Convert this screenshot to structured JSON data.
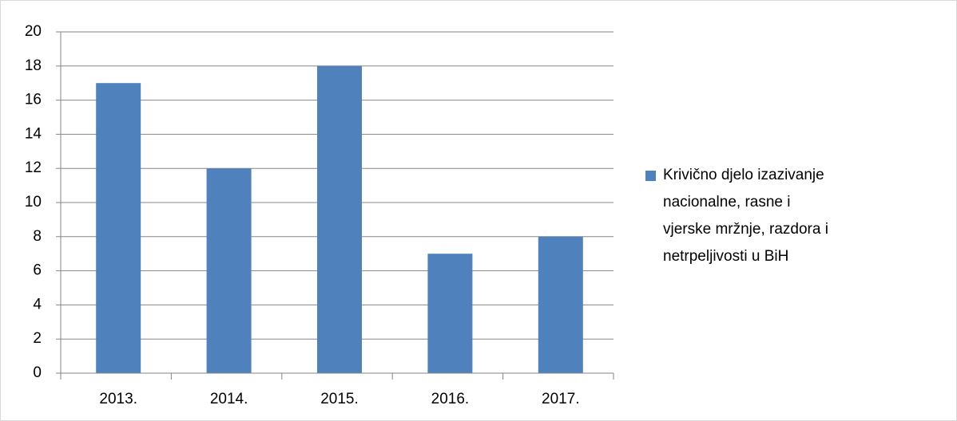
{
  "chart_data": {
    "type": "bar",
    "categories": [
      "2013.",
      "2014.",
      "2015.",
      "2016.",
      "2017."
    ],
    "series": [
      {
        "name": "Krivično djelo izazivanje nacionalne, rasne i vjerske mržnje, razdora i netrpeljivosti u BiH",
        "color": "#4f81bd",
        "values": [
          17,
          12,
          18,
          7,
          8
        ]
      }
    ],
    "ylim": [
      0,
      20
    ],
    "yticks": [
      0,
      2,
      4,
      6,
      8,
      10,
      12,
      14,
      16,
      18,
      20
    ],
    "grid": true,
    "legend": "right"
  }
}
